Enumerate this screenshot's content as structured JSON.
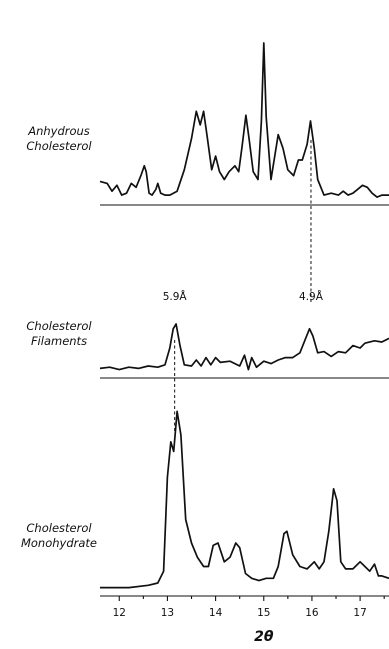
{
  "chart_data": {
    "type": "line",
    "xlabel": "2θ",
    "xlim": [
      11.6,
      17.6
    ],
    "xticks": [
      "12",
      "13",
      "14",
      "15",
      "16",
      "17"
    ],
    "grid": false,
    "panels": [
      {
        "label_lines": [
          "Anhydrous",
          "Cholesterol"
        ],
        "annotations": [],
        "points": [
          [
            11.6,
            0.09
          ],
          [
            11.75,
            0.08
          ],
          [
            11.85,
            0.04
          ],
          [
            11.95,
            0.07
          ],
          [
            12.05,
            0.02
          ],
          [
            12.15,
            0.03
          ],
          [
            12.25,
            0.08
          ],
          [
            12.35,
            0.06
          ],
          [
            12.45,
            0.12
          ],
          [
            12.52,
            0.17
          ],
          [
            12.56,
            0.14
          ],
          [
            12.62,
            0.03
          ],
          [
            12.68,
            0.02
          ],
          [
            12.76,
            0.05
          ],
          [
            12.8,
            0.08
          ],
          [
            12.86,
            0.03
          ],
          [
            12.95,
            0.02
          ],
          [
            13.05,
            0.02
          ],
          [
            13.2,
            0.04
          ],
          [
            13.35,
            0.15
          ],
          [
            13.5,
            0.31
          ],
          [
            13.6,
            0.45
          ],
          [
            13.68,
            0.38
          ],
          [
            13.75,
            0.45
          ],
          [
            13.82,
            0.33
          ],
          [
            13.92,
            0.15
          ],
          [
            14.0,
            0.22
          ],
          [
            14.08,
            0.14
          ],
          [
            14.18,
            0.1
          ],
          [
            14.28,
            0.14
          ],
          [
            14.4,
            0.17
          ],
          [
            14.48,
            0.14
          ],
          [
            14.55,
            0.27
          ],
          [
            14.63,
            0.43
          ],
          [
            14.7,
            0.3
          ],
          [
            14.78,
            0.14
          ],
          [
            14.88,
            0.1
          ],
          [
            14.95,
            0.4
          ],
          [
            15.0,
            0.8
          ],
          [
            15.05,
            0.42
          ],
          [
            15.15,
            0.1
          ],
          [
            15.3,
            0.33
          ],
          [
            15.4,
            0.26
          ],
          [
            15.5,
            0.15
          ],
          [
            15.62,
            0.12
          ],
          [
            15.72,
            0.2
          ],
          [
            15.8,
            0.2
          ],
          [
            15.9,
            0.28
          ],
          [
            15.97,
            0.4
          ],
          [
            16.05,
            0.26
          ],
          [
            16.12,
            0.1
          ],
          [
            16.25,
            0.02
          ],
          [
            16.4,
            0.03
          ],
          [
            16.55,
            0.02
          ],
          [
            16.65,
            0.04
          ],
          [
            16.75,
            0.02
          ],
          [
            16.85,
            0.03
          ],
          [
            16.95,
            0.05
          ],
          [
            17.05,
            0.07
          ],
          [
            17.15,
            0.06
          ],
          [
            17.25,
            0.03
          ],
          [
            17.35,
            0.01
          ],
          [
            17.45,
            0.02
          ],
          [
            17.6,
            0.02
          ]
        ]
      },
      {
        "label_lines": [
          "Cholesterol",
          "Filaments"
        ],
        "annotations": [
          {
            "text": "5.9Å",
            "x": 13.15
          },
          {
            "text": "4.9Å",
            "x": 15.98
          }
        ],
        "points": [
          [
            11.6,
            0.03
          ],
          [
            11.8,
            0.04
          ],
          [
            12.0,
            0.02
          ],
          [
            12.2,
            0.04
          ],
          [
            12.4,
            0.03
          ],
          [
            12.6,
            0.05
          ],
          [
            12.8,
            0.04
          ],
          [
            12.95,
            0.06
          ],
          [
            13.05,
            0.2
          ],
          [
            13.12,
            0.36
          ],
          [
            13.18,
            0.4
          ],
          [
            13.26,
            0.22
          ],
          [
            13.35,
            0.06
          ],
          [
            13.5,
            0.05
          ],
          [
            13.6,
            0.1
          ],
          [
            13.7,
            0.05
          ],
          [
            13.8,
            0.12
          ],
          [
            13.9,
            0.06
          ],
          [
            14.0,
            0.12
          ],
          [
            14.1,
            0.08
          ],
          [
            14.3,
            0.09
          ],
          [
            14.5,
            0.05
          ],
          [
            14.6,
            0.14
          ],
          [
            14.68,
            0.02
          ],
          [
            14.75,
            0.12
          ],
          [
            14.85,
            0.04
          ],
          [
            15.0,
            0.09
          ],
          [
            15.15,
            0.07
          ],
          [
            15.3,
            0.1
          ],
          [
            15.45,
            0.12
          ],
          [
            15.6,
            0.12
          ],
          [
            15.75,
            0.16
          ],
          [
            15.85,
            0.26
          ],
          [
            15.95,
            0.36
          ],
          [
            16.02,
            0.3
          ],
          [
            16.12,
            0.16
          ],
          [
            16.25,
            0.17
          ],
          [
            16.4,
            0.13
          ],
          [
            16.55,
            0.17
          ],
          [
            16.7,
            0.16
          ],
          [
            16.85,
            0.22
          ],
          [
            17.0,
            0.2
          ],
          [
            17.1,
            0.24
          ],
          [
            17.3,
            0.26
          ],
          [
            17.45,
            0.25
          ],
          [
            17.6,
            0.28
          ]
        ]
      },
      {
        "label_lines": [
          "Cholesterol",
          "Monohydrate"
        ],
        "annotations": [],
        "points": [
          [
            11.6,
            0.01
          ],
          [
            11.8,
            0.01
          ],
          [
            12.2,
            0.01
          ],
          [
            12.6,
            0.02
          ],
          [
            12.8,
            0.03
          ],
          [
            12.92,
            0.08
          ],
          [
            13.0,
            0.48
          ],
          [
            13.07,
            0.63
          ],
          [
            13.13,
            0.59
          ],
          [
            13.2,
            0.76
          ],
          [
            13.28,
            0.66
          ],
          [
            13.38,
            0.3
          ],
          [
            13.5,
            0.2
          ],
          [
            13.62,
            0.14
          ],
          [
            13.75,
            0.1
          ],
          [
            13.85,
            0.1
          ],
          [
            13.95,
            0.19
          ],
          [
            14.05,
            0.2
          ],
          [
            14.18,
            0.12
          ],
          [
            14.3,
            0.14
          ],
          [
            14.42,
            0.2
          ],
          [
            14.5,
            0.18
          ],
          [
            14.62,
            0.07
          ],
          [
            14.75,
            0.05
          ],
          [
            14.9,
            0.04
          ],
          [
            15.05,
            0.05
          ],
          [
            15.2,
            0.05
          ],
          [
            15.3,
            0.1
          ],
          [
            15.42,
            0.24
          ],
          [
            15.48,
            0.25
          ],
          [
            15.6,
            0.15
          ],
          [
            15.75,
            0.1
          ],
          [
            15.9,
            0.09
          ],
          [
            16.05,
            0.12
          ],
          [
            16.15,
            0.09
          ],
          [
            16.25,
            0.12
          ],
          [
            16.35,
            0.25
          ],
          [
            16.45,
            0.43
          ],
          [
            16.52,
            0.38
          ],
          [
            16.6,
            0.12
          ],
          [
            16.7,
            0.09
          ],
          [
            16.85,
            0.09
          ],
          [
            17.0,
            0.12
          ],
          [
            17.1,
            0.1
          ],
          [
            17.2,
            0.08
          ],
          [
            17.3,
            0.11
          ],
          [
            17.38,
            0.06
          ],
          [
            17.45,
            0.06
          ],
          [
            17.6,
            0.05
          ]
        ]
      }
    ],
    "dashed_guides_at_x": [
      13.15,
      15.98
    ]
  }
}
